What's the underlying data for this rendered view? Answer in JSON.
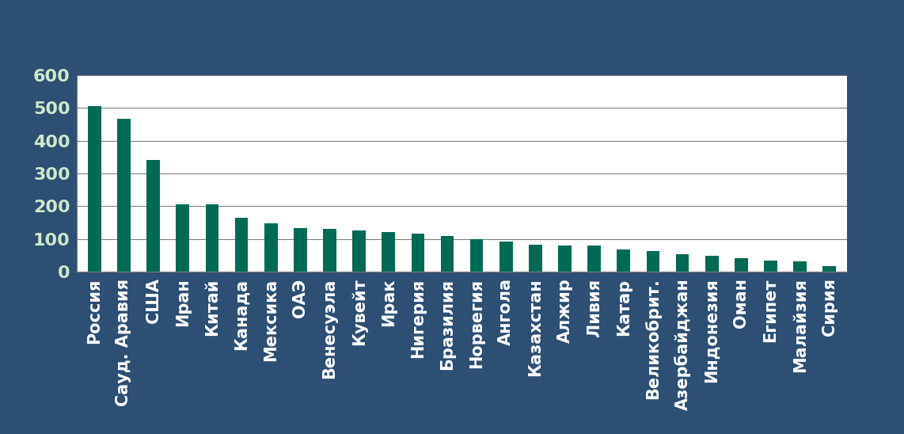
{
  "chart_data": {
    "type": "bar",
    "categories": [
      "Россия",
      "Сауд. Аравия",
      "США",
      "Иран",
      "Китай",
      "Канада",
      "Мексика",
      "ОАЭ",
      "Венесуэла",
      "Кувейт",
      "Ирак",
      "Нигерия",
      "Бразилия",
      "Норвегия",
      "Ангола",
      "Казахстан",
      "Алжир",
      "Ливия",
      "Катар",
      "Великобрит.",
      "Азербайджан",
      "Индонезия",
      "Оман",
      "Египет",
      "Малайзия",
      "Сирия"
    ],
    "values": [
      505,
      467,
      340,
      205,
      205,
      165,
      148,
      132,
      130,
      125,
      122,
      115,
      108,
      100,
      92,
      82,
      80,
      80,
      67,
      63,
      53,
      48,
      42,
      35,
      32,
      18
    ],
    "color": "#006a55",
    "ylim": [
      0,
      600
    ],
    "yticks": [
      0,
      100,
      200,
      300,
      400,
      500,
      600
    ],
    "grid": true
  }
}
